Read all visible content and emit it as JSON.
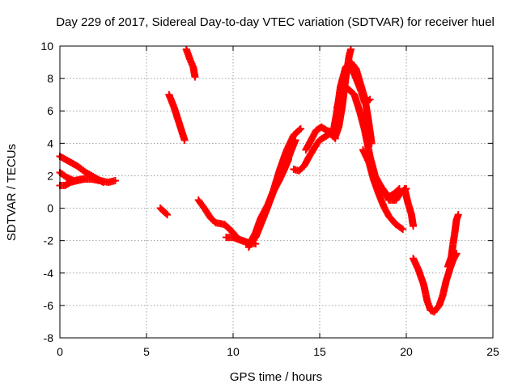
{
  "chart_data": {
    "type": "scatter",
    "title": "Day 229 of 2017, Sidereal Day-to-day VTEC variation (SDTVAR) for receiver huel",
    "xlabel": "GPS time / hours",
    "ylabel": "SDTVAR / TECUs",
    "xlim": [
      0,
      25
    ],
    "ylim": [
      -8,
      10
    ],
    "xticks": [
      0,
      5,
      10,
      15,
      20,
      25
    ],
    "yticks": [
      -8,
      -6,
      -4,
      -2,
      0,
      2,
      4,
      6,
      8,
      10
    ],
    "grid": true,
    "marker": "plus",
    "color": "#ff0000",
    "series": [
      {
        "values": [
          [
            0.0,
            3.2
          ],
          [
            0.5,
            2.9
          ],
          [
            1.0,
            2.6
          ],
          [
            1.5,
            2.2
          ],
          [
            2.0,
            1.9
          ],
          [
            2.5,
            1.6
          ]
        ]
      },
      {
        "values": [
          [
            0.0,
            2.2
          ],
          [
            0.4,
            1.9
          ],
          [
            0.8,
            1.7
          ],
          [
            1.3,
            1.8
          ],
          [
            1.8,
            1.8
          ],
          [
            2.3,
            1.7
          ],
          [
            2.8,
            1.6
          ],
          [
            3.2,
            1.7
          ]
        ]
      },
      {
        "values": [
          [
            0.0,
            1.4
          ],
          [
            0.3,
            1.4
          ],
          [
            0.6,
            1.6
          ],
          [
            1.0,
            1.7
          ],
          [
            1.4,
            1.8
          ]
        ]
      },
      {
        "values": [
          [
            5.8,
            0.0
          ],
          [
            6.0,
            -0.2
          ],
          [
            6.2,
            -0.4
          ]
        ]
      },
      {
        "values": [
          [
            6.3,
            7.0
          ],
          [
            6.6,
            6.2
          ],
          [
            6.9,
            5.2
          ],
          [
            7.2,
            4.2
          ]
        ]
      },
      {
        "values": [
          [
            7.3,
            9.8
          ],
          [
            7.5,
            9.2
          ],
          [
            7.7,
            8.7
          ],
          [
            7.8,
            8.1
          ]
        ]
      },
      {
        "values": [
          [
            8.0,
            0.5
          ],
          [
            8.4,
            -0.1
          ],
          [
            8.7,
            -0.6
          ],
          [
            9.0,
            -0.9
          ],
          [
            9.5,
            -1.0
          ],
          [
            9.9,
            -1.4
          ],
          [
            10.3,
            -1.9
          ],
          [
            10.8,
            -2.1
          ],
          [
            11.3,
            -2.2
          ]
        ]
      },
      {
        "values": [
          [
            9.6,
            -1.8
          ],
          [
            10.0,
            -1.8
          ],
          [
            10.5,
            -2.0
          ],
          [
            11.0,
            -2.2
          ],
          [
            11.3,
            -1.8
          ],
          [
            11.6,
            -1.0
          ],
          [
            11.9,
            -0.2
          ],
          [
            12.3,
            1.0
          ],
          [
            12.7,
            2.4
          ],
          [
            13.1,
            3.6
          ],
          [
            13.5,
            4.5
          ],
          [
            13.9,
            4.9
          ]
        ]
      },
      {
        "values": [
          [
            10.9,
            -2.4
          ],
          [
            11.2,
            -1.8
          ],
          [
            11.5,
            -1.2
          ],
          [
            11.8,
            -0.4
          ],
          [
            12.1,
            0.4
          ],
          [
            12.4,
            1.2
          ],
          [
            12.7,
            1.8
          ],
          [
            13.0,
            2.5
          ],
          [
            13.3,
            3.4
          ],
          [
            13.6,
            4.2
          ]
        ]
      },
      {
        "values": [
          [
            11.0,
            -2.1
          ],
          [
            11.3,
            -1.5
          ],
          [
            11.6,
            -0.6
          ],
          [
            12.0,
            0.2
          ],
          [
            12.3,
            1.0
          ],
          [
            12.6,
            1.6
          ],
          [
            12.9,
            2.3
          ],
          [
            13.2,
            3.0
          ]
        ]
      },
      {
        "values": [
          [
            13.5,
            2.4
          ],
          [
            13.8,
            2.3
          ],
          [
            14.1,
            2.6
          ],
          [
            14.4,
            3.2
          ],
          [
            14.8,
            3.9
          ],
          [
            15.0,
            4.2
          ],
          [
            15.3,
            4.4
          ],
          [
            15.6,
            4.6
          ],
          [
            15.9,
            4.3
          ]
        ]
      },
      {
        "values": [
          [
            14.2,
            3.6
          ],
          [
            14.5,
            4.2
          ],
          [
            14.8,
            4.8
          ],
          [
            15.1,
            5.0
          ],
          [
            15.4,
            4.8
          ],
          [
            15.7,
            4.7
          ],
          [
            15.9,
            4.4
          ],
          [
            16.1,
            5.0
          ],
          [
            16.3,
            6.3
          ],
          [
            16.5,
            8.0
          ],
          [
            16.7,
            9.4
          ],
          [
            16.8,
            9.8
          ]
        ]
      },
      {
        "values": [
          [
            15.8,
            4.8
          ],
          [
            16.0,
            6.0
          ],
          [
            16.2,
            7.5
          ],
          [
            16.5,
            8.7
          ],
          [
            16.8,
            9.0
          ],
          [
            17.1,
            8.6
          ],
          [
            17.4,
            7.5
          ],
          [
            17.6,
            6.8
          ],
          [
            17.8,
            5.5
          ],
          [
            18.0,
            4.0
          ]
        ]
      },
      {
        "values": [
          [
            16.0,
            6.2
          ],
          [
            16.3,
            7.2
          ],
          [
            16.6,
            7.4
          ],
          [
            17.0,
            7.0
          ],
          [
            17.3,
            6.0
          ],
          [
            17.6,
            4.8
          ],
          [
            17.9,
            3.2
          ],
          [
            18.2,
            2.0
          ],
          [
            18.6,
            1.2
          ],
          [
            19.0,
            0.7
          ],
          [
            19.3,
            0.9
          ],
          [
            19.6,
            1.2
          ]
        ]
      },
      {
        "values": [
          [
            16.8,
            8.8
          ],
          [
            17.1,
            8.0
          ],
          [
            17.4,
            7.2
          ],
          [
            17.6,
            6.5
          ],
          [
            17.9,
            6.7
          ]
        ]
      },
      {
        "values": [
          [
            17.5,
            3.6
          ],
          [
            17.9,
            2.7
          ],
          [
            18.3,
            1.7
          ],
          [
            18.7,
            1.1
          ],
          [
            19.0,
            0.5
          ],
          [
            19.4,
            0.5
          ],
          [
            19.7,
            1.0
          ],
          [
            20.0,
            1.2
          ]
        ]
      },
      {
        "values": [
          [
            17.8,
            3.0
          ],
          [
            18.1,
            1.8
          ],
          [
            18.4,
            0.9
          ],
          [
            18.7,
            0.1
          ],
          [
            19.0,
            -0.5
          ],
          [
            19.4,
            -1.0
          ],
          [
            19.8,
            -1.3
          ]
        ]
      },
      {
        "values": [
          [
            19.9,
            1.2
          ],
          [
            20.1,
            0.3
          ],
          [
            20.3,
            -0.4
          ],
          [
            20.4,
            -1.1
          ]
        ]
      },
      {
        "values": [
          [
            20.4,
            -3.1
          ],
          [
            20.7,
            -3.8
          ],
          [
            21.0,
            -4.7
          ],
          [
            21.2,
            -5.7
          ],
          [
            21.4,
            -6.3
          ],
          [
            21.6,
            -6.4
          ],
          [
            21.9,
            -6.0
          ],
          [
            22.1,
            -5.4
          ],
          [
            22.3,
            -4.5
          ],
          [
            22.5,
            -3.8
          ],
          [
            22.7,
            -3.2
          ],
          [
            22.9,
            -2.8
          ]
        ]
      },
      {
        "values": [
          [
            22.4,
            -3.6
          ],
          [
            22.6,
            -3.0
          ],
          [
            22.7,
            -2.2
          ],
          [
            22.8,
            -1.5
          ],
          [
            22.9,
            -0.7
          ],
          [
            23.0,
            -0.4
          ]
        ]
      }
    ]
  }
}
